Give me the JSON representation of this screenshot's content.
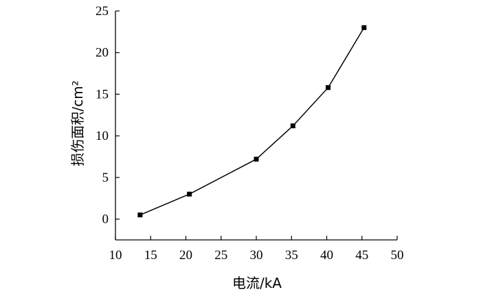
{
  "chart_data": {
    "type": "line",
    "title": "",
    "xlabel": "电流/kA",
    "ylabel": "损伤面积/cm²",
    "xlim": [
      10,
      50
    ],
    "ylim": [
      -2.5,
      25
    ],
    "xticks": [
      10,
      15,
      20,
      25,
      30,
      35,
      40,
      45,
      50
    ],
    "yticks": [
      0,
      5,
      10,
      15,
      20,
      25
    ],
    "grid": false,
    "legend": "none",
    "series": [
      {
        "x": [
          13.5,
          20.5,
          30,
          35.2,
          40.2,
          45.3
        ],
        "y": [
          0.5,
          3.0,
          7.2,
          11.2,
          15.8,
          23.0
        ],
        "color": "#000000",
        "marker": "square"
      }
    ]
  }
}
